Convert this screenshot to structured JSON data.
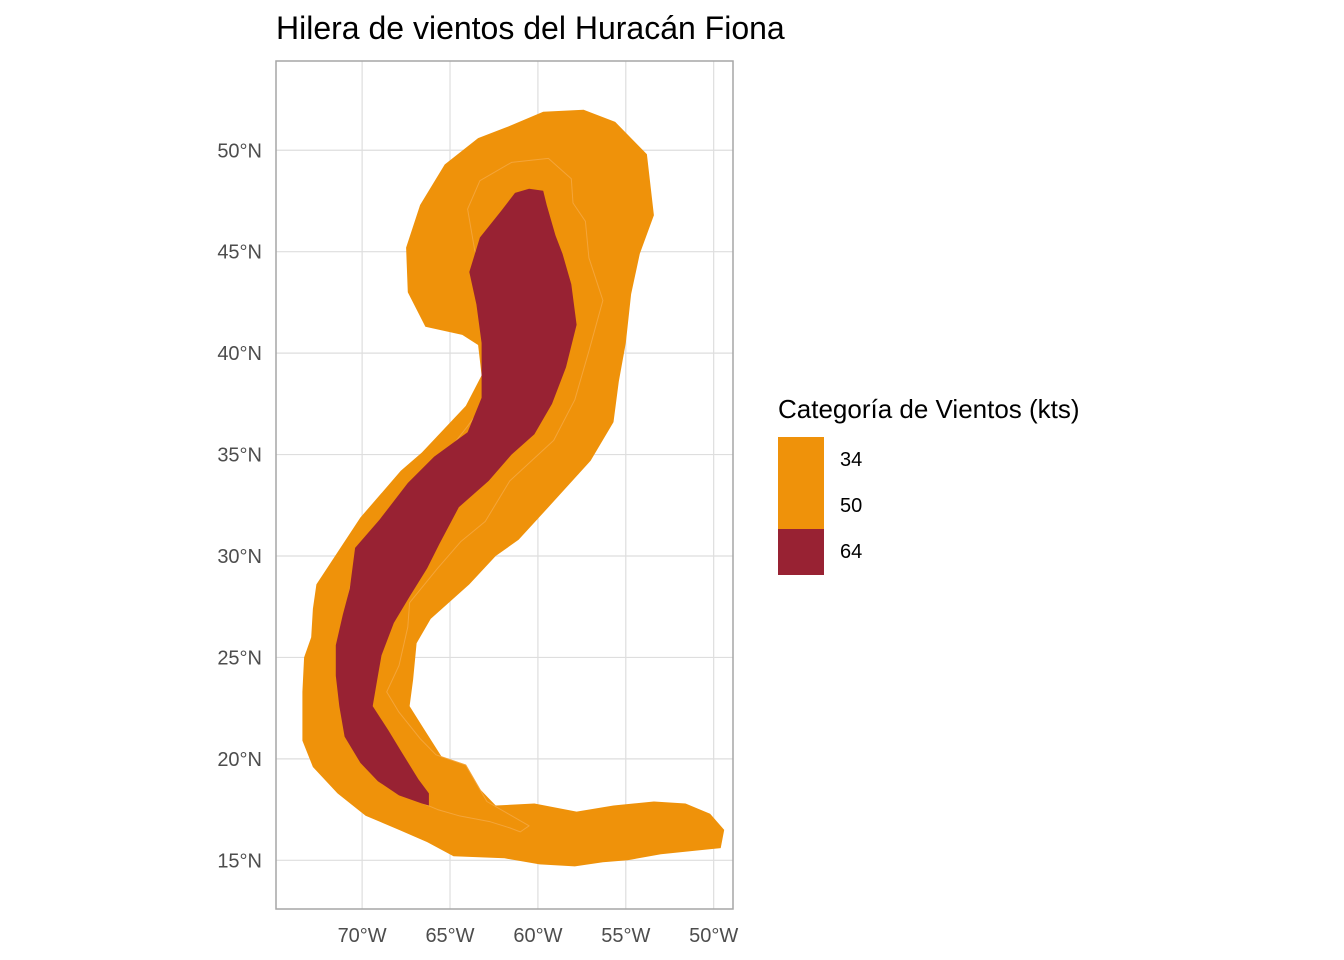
{
  "title": "Hilera de vientos del Huracán Fiona",
  "colors": {
    "panel_border": "#a6a6a6",
    "grid": "#dedede",
    "orange": "#ef920a",
    "darkred": "#982233"
  },
  "chart_data": {
    "type": "map",
    "title": "Hilera de vientos del Huracán Fiona",
    "x_axis": {
      "ticks": [
        "70°W",
        "65°W",
        "60°W",
        "55°W",
        "50°W"
      ],
      "values": [
        -70,
        -65,
        -60,
        -55,
        -50
      ],
      "range": [
        -74.9,
        -48.9
      ]
    },
    "y_axis": {
      "ticks": [
        "15°N",
        "20°N",
        "25°N",
        "30°N",
        "35°N",
        "40°N",
        "45°N",
        "50°N"
      ],
      "values": [
        15,
        20,
        25,
        30,
        35,
        40,
        45,
        50
      ],
      "range": [
        12.6,
        54.4
      ]
    },
    "legend": {
      "title": "Categoría de Vientos (kts)",
      "position": "right",
      "entries": [
        {
          "label": "34",
          "color": "#ef920a"
        },
        {
          "label": "50",
          "color": "#ef920a"
        },
        {
          "label": "64",
          "color": "#982233"
        }
      ]
    },
    "swaths": [
      {
        "category": "34",
        "color": "#ef920a",
        "outline_lonlat": [
          [
            -70.1,
            31.9
          ],
          [
            -67.8,
            34.2
          ],
          [
            -66.6,
            35.1
          ],
          [
            -64.1,
            37.4
          ],
          [
            -63.2,
            38.9
          ],
          [
            -63.4,
            40.4
          ],
          [
            -64.3,
            40.9
          ],
          [
            -66.4,
            41.3
          ],
          [
            -67.4,
            43.0
          ],
          [
            -67.5,
            45.2
          ],
          [
            -66.7,
            47.3
          ],
          [
            -65.3,
            49.3
          ],
          [
            -63.4,
            50.6
          ],
          [
            -61.6,
            51.2
          ],
          [
            -59.7,
            51.9
          ],
          [
            -57.4,
            52.0
          ],
          [
            -55.6,
            51.4
          ],
          [
            -53.8,
            49.8
          ],
          [
            -53.4,
            46.8
          ],
          [
            -54.2,
            44.9
          ],
          [
            -54.7,
            42.9
          ],
          [
            -55.0,
            40.5
          ],
          [
            -55.4,
            38.6
          ],
          [
            -55.7,
            36.6
          ],
          [
            -57.0,
            34.7
          ],
          [
            -59.2,
            32.6
          ],
          [
            -61.1,
            30.8
          ],
          [
            -62.4,
            30.0
          ],
          [
            -63.9,
            28.6
          ],
          [
            -66.1,
            26.9
          ],
          [
            -66.9,
            25.7
          ],
          [
            -67.1,
            23.9
          ],
          [
            -67.3,
            22.6
          ],
          [
            -66.5,
            21.5
          ],
          [
            -65.4,
            20.0
          ],
          [
            -64.8,
            19.2
          ],
          [
            -63.4,
            18.6
          ],
          [
            -62.4,
            17.7
          ],
          [
            -60.2,
            17.8
          ],
          [
            -57.8,
            17.4
          ],
          [
            -55.7,
            17.7
          ],
          [
            -53.4,
            17.9
          ],
          [
            -51.6,
            17.8
          ],
          [
            -50.2,
            17.3
          ],
          [
            -49.4,
            16.5
          ],
          [
            -49.6,
            15.6
          ],
          [
            -50.8,
            15.5
          ],
          [
            -53.0,
            15.3
          ],
          [
            -54.9,
            15.0
          ],
          [
            -56.3,
            14.9
          ],
          [
            -57.9,
            14.7
          ],
          [
            -59.9,
            14.8
          ],
          [
            -61.9,
            15.1
          ],
          [
            -64.8,
            15.2
          ],
          [
            -66.3,
            15.9
          ],
          [
            -67.9,
            16.5
          ],
          [
            -69.8,
            17.2
          ],
          [
            -71.4,
            18.3
          ],
          [
            -72.8,
            19.6
          ],
          [
            -73.4,
            20.9
          ],
          [
            -73.4,
            23.3
          ],
          [
            -73.3,
            25.0
          ],
          [
            -72.9,
            26.0
          ],
          [
            -72.8,
            27.4
          ],
          [
            -72.6,
            28.6
          ]
        ]
      },
      {
        "category": "50",
        "color": "#ef920a",
        "outline_lonlat": [
          [
            -68.1,
            32.1
          ],
          [
            -65.9,
            34.3
          ],
          [
            -64.0,
            36.4
          ],
          [
            -62.7,
            37.9
          ],
          [
            -61.9,
            41.1
          ],
          [
            -63.0,
            43.5
          ],
          [
            -63.6,
            45.1
          ],
          [
            -64.0,
            47.1
          ],
          [
            -63.3,
            48.5
          ],
          [
            -61.5,
            49.4
          ],
          [
            -59.4,
            49.6
          ],
          [
            -58.1,
            48.6
          ],
          [
            -58.0,
            47.4
          ],
          [
            -57.3,
            46.5
          ],
          [
            -57.1,
            44.7
          ],
          [
            -56.3,
            42.6
          ],
          [
            -57.1,
            40.1
          ],
          [
            -57.9,
            37.7
          ],
          [
            -59.1,
            35.7
          ],
          [
            -61.6,
            33.7
          ],
          [
            -63.0,
            31.7
          ],
          [
            -64.4,
            30.7
          ],
          [
            -65.7,
            29.4
          ],
          [
            -67.3,
            27.7
          ],
          [
            -67.4,
            26.5
          ],
          [
            -67.9,
            24.6
          ],
          [
            -68.6,
            23.3
          ],
          [
            -67.9,
            22.3
          ],
          [
            -66.7,
            21.0
          ],
          [
            -65.8,
            20.2
          ],
          [
            -64.1,
            19.7
          ],
          [
            -62.9,
            17.9
          ],
          [
            -61.7,
            17.3
          ],
          [
            -60.5,
            16.7
          ],
          [
            -61.0,
            16.4
          ],
          [
            -61.6,
            16.6
          ],
          [
            -62.7,
            16.9
          ],
          [
            -64.5,
            17.2
          ],
          [
            -65.7,
            17.5
          ],
          [
            -68.2,
            18.4
          ],
          [
            -69.5,
            19.8
          ],
          [
            -71.0,
            21.8
          ],
          [
            -71.3,
            23.2
          ],
          [
            -71.2,
            25.0
          ],
          [
            -71.1,
            26.7
          ],
          [
            -70.5,
            29.2
          ]
        ]
      },
      {
        "category": "64",
        "color": "#982233",
        "outline_lonlat": [
          [
            -70.4,
            30.4
          ],
          [
            -69.0,
            31.8
          ],
          [
            -67.4,
            33.6
          ],
          [
            -65.9,
            34.9
          ],
          [
            -64.0,
            36.1
          ],
          [
            -63.2,
            37.8
          ],
          [
            -63.2,
            40.5
          ],
          [
            -63.5,
            42.4
          ],
          [
            -63.9,
            44.0
          ],
          [
            -63.3,
            45.7
          ],
          [
            -62.1,
            47.0
          ],
          [
            -61.3,
            47.9
          ],
          [
            -60.5,
            48.1
          ],
          [
            -59.7,
            48.0
          ],
          [
            -59.5,
            47.3
          ],
          [
            -59.0,
            45.8
          ],
          [
            -58.6,
            44.9
          ],
          [
            -58.1,
            43.4
          ],
          [
            -57.8,
            41.4
          ],
          [
            -58.4,
            39.3
          ],
          [
            -59.2,
            37.5
          ],
          [
            -60.2,
            36.0
          ],
          [
            -61.5,
            35.0
          ],
          [
            -62.8,
            33.7
          ],
          [
            -64.5,
            32.4
          ],
          [
            -65.6,
            30.6
          ],
          [
            -66.3,
            29.4
          ],
          [
            -67.3,
            28.0
          ],
          [
            -68.2,
            26.7
          ],
          [
            -68.9,
            25.1
          ],
          [
            -69.1,
            24.1
          ],
          [
            -69.4,
            22.6
          ],
          [
            -68.5,
            21.4
          ],
          [
            -67.8,
            20.4
          ],
          [
            -66.8,
            19.0
          ],
          [
            -66.2,
            18.3
          ],
          [
            -66.2,
            17.7
          ],
          [
            -66.6,
            17.8
          ],
          [
            -67.9,
            18.2
          ],
          [
            -69.1,
            18.9
          ],
          [
            -70.1,
            19.8
          ],
          [
            -71.0,
            21.1
          ],
          [
            -71.3,
            22.6
          ],
          [
            -71.5,
            24.1
          ],
          [
            -71.5,
            25.6
          ],
          [
            -71.1,
            27.1
          ],
          [
            -70.7,
            28.4
          ]
        ]
      }
    ]
  }
}
